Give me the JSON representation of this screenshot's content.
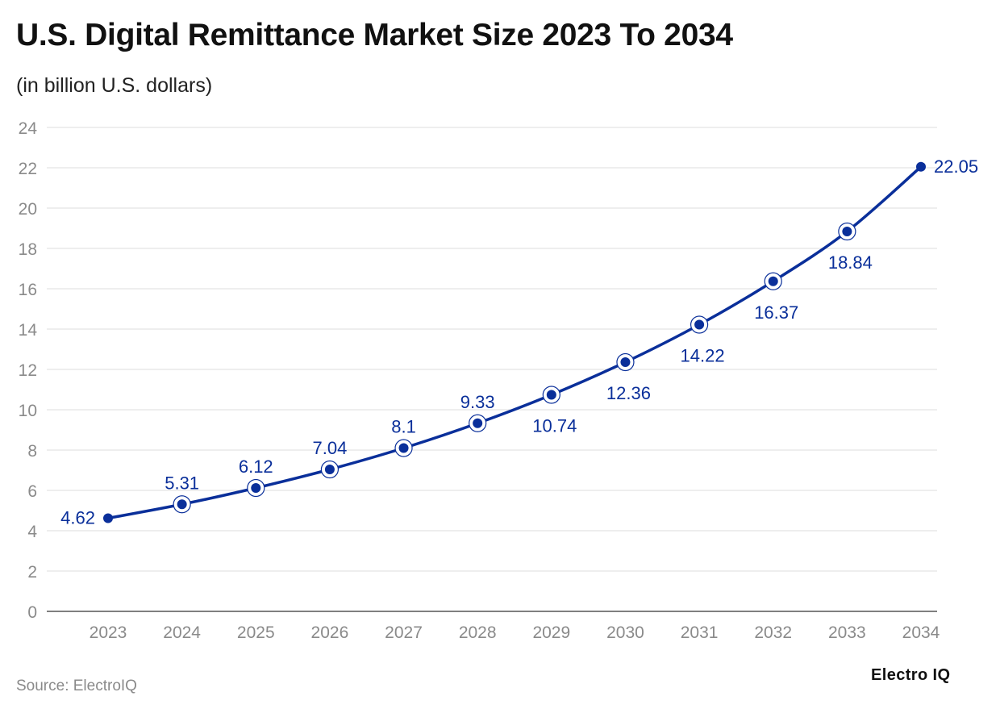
{
  "header": {
    "title": "U.S. Digital Remittance Market Size 2023 To 2034",
    "subtitle": "(in billion U.S. dollars)"
  },
  "footer": {
    "source": "Source: ElectroIQ",
    "brand": "Electro IQ"
  },
  "colors": {
    "series": "#0a2f9a",
    "grid": "#dcdcdc",
    "axis": "#555555",
    "tick_text": "#8a8a8a"
  },
  "chart_data": {
    "type": "line",
    "title": "U.S. Digital Remittance Market Size 2023 To 2034",
    "subtitle": "(in billion U.S. dollars)",
    "xlabel": "",
    "ylabel": "",
    "ylim": [
      0,
      24
    ],
    "yticks": [
      0,
      2,
      4,
      6,
      8,
      10,
      12,
      14,
      16,
      18,
      20,
      22,
      24
    ],
    "grid": true,
    "categories": [
      "2023",
      "2024",
      "2025",
      "2026",
      "2027",
      "2028",
      "2029",
      "2030",
      "2031",
      "2032",
      "2033",
      "2034"
    ],
    "series": [
      {
        "name": "Market Size",
        "values": [
          4.62,
          5.31,
          6.12,
          7.04,
          8.1,
          9.33,
          10.74,
          12.36,
          14.22,
          16.37,
          18.84,
          22.05
        ],
        "labels": [
          "4.62",
          "5.31",
          "6.12",
          "7.04",
          "8.1",
          "9.33",
          "10.74",
          "12.36",
          "14.22",
          "16.37",
          "18.84",
          "22.05"
        ]
      }
    ]
  }
}
